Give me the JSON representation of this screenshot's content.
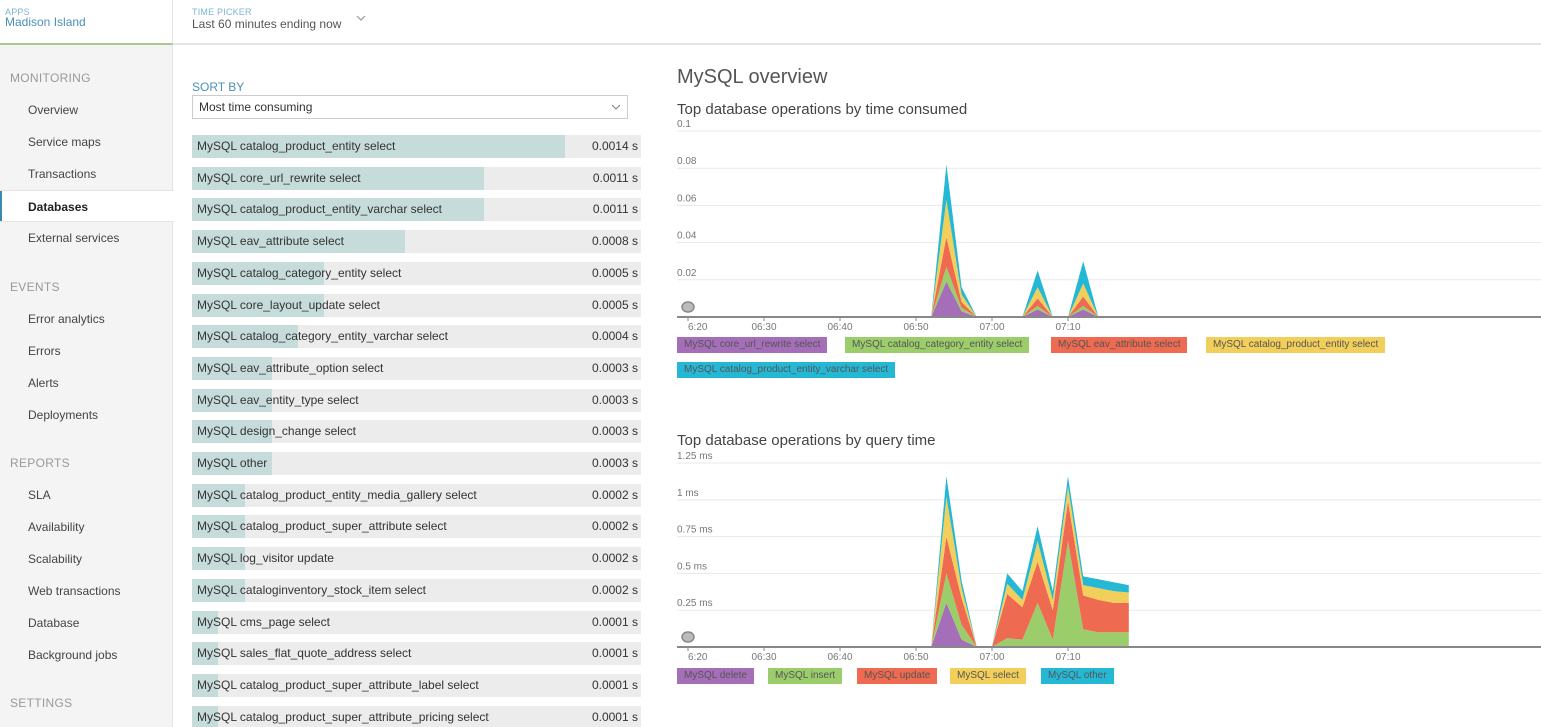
{
  "header": {
    "apps_label": "APPS",
    "app_name": "Madison Island",
    "time_picker_label": "TIME PICKER",
    "time_picker_value": "Last 60 minutes ending now"
  },
  "sidebar": {
    "sections": [
      {
        "title": "MONITORING",
        "items": [
          "Overview",
          "Service maps",
          "Transactions",
          "Databases",
          "External services"
        ]
      },
      {
        "title": "EVENTS",
        "items": [
          "Error analytics",
          "Errors",
          "Alerts",
          "Deployments"
        ]
      },
      {
        "title": "REPORTS",
        "items": [
          "SLA",
          "Availability",
          "Scalability",
          "Web transactions",
          "Database",
          "Background jobs"
        ]
      },
      {
        "title": "SETTINGS",
        "items": []
      }
    ],
    "active_item": "Databases"
  },
  "sort": {
    "label": "SORT BY",
    "selected": "Most time consuming"
  },
  "operations": [
    {
      "name": "MySQL catalog_product_entity select",
      "value": "0.0014 s",
      "fraction": 0.83
    },
    {
      "name": "MySQL core_url_rewrite select",
      "value": "0.0011 s",
      "fraction": 0.65
    },
    {
      "name": "MySQL catalog_product_entity_varchar select",
      "value": "0.0011 s",
      "fraction": 0.65
    },
    {
      "name": "MySQL eav_attribute select",
      "value": "0.0008 s",
      "fraction": 0.475
    },
    {
      "name": "MySQL catalog_category_entity select",
      "value": "0.0005 s",
      "fraction": 0.295
    },
    {
      "name": "MySQL core_layout_update select",
      "value": "0.0005 s",
      "fraction": 0.295
    },
    {
      "name": "MySQL catalog_category_entity_varchar select",
      "value": "0.0004 s",
      "fraction": 0.235
    },
    {
      "name": "MySQL eav_attribute_option select",
      "value": "0.0003 s",
      "fraction": 0.178
    },
    {
      "name": "MySQL eav_entity_type select",
      "value": "0.0003 s",
      "fraction": 0.178
    },
    {
      "name": "MySQL design_change select",
      "value": "0.0003 s",
      "fraction": 0.178
    },
    {
      "name": "MySQL other",
      "value": "0.0003 s",
      "fraction": 0.178
    },
    {
      "name": "MySQL catalog_product_entity_media_gallery select",
      "value": "0.0002 s",
      "fraction": 0.118
    },
    {
      "name": "MySQL catalog_product_super_attribute select",
      "value": "0.0002 s",
      "fraction": 0.118
    },
    {
      "name": "MySQL log_visitor update",
      "value": "0.0002 s",
      "fraction": 0.118
    },
    {
      "name": "MySQL cataloginventory_stock_item select",
      "value": "0.0002 s",
      "fraction": 0.118
    },
    {
      "name": "MySQL cms_page select",
      "value": "0.0001 s",
      "fraction": 0.059
    },
    {
      "name": "MySQL sales_flat_quote_address select",
      "value": "0.0001 s",
      "fraction": 0.059
    },
    {
      "name": "MySQL catalog_product_super_attribute_label select",
      "value": "0.0001 s",
      "fraction": 0.059
    },
    {
      "name": "MySQL catalog_product_super_attribute_pricing select",
      "value": "0.0001 s",
      "fraction": 0.059
    }
  ],
  "page_title": "MySQL overview",
  "chart_data": [
    {
      "type": "area",
      "title": "Top database operations by time consumed",
      "stacked": true,
      "x": [
        "6:20",
        "6:22",
        "6:24",
        "6:26",
        "6:28",
        "6:30",
        "6:32",
        "6:34",
        "6:36",
        "6:38",
        "6:40",
        "6:42",
        "6:44",
        "6:46",
        "6:48",
        "6:50",
        "6:52",
        "6:54",
        "6:56",
        "6:58",
        "7:00",
        "7:02",
        "7:04",
        "7:06",
        "7:08",
        "7:10",
        "7:12",
        "7:14",
        "7:16"
      ],
      "x_tick_labels": [
        "6:20",
        "06:30",
        "06:40",
        "06:50",
        "07:00",
        "07:10"
      ],
      "y_tick_labels": [
        "0.1",
        "0.08",
        "0.06",
        "0.04",
        "0.02"
      ],
      "ylim": [
        0,
        0.1
      ],
      "series": [
        {
          "name": "MySQL core_url_rewrite select",
          "color": "#a56eb8",
          "values": [
            0,
            0,
            0,
            0,
            0,
            0,
            0,
            0,
            0,
            0,
            0,
            0,
            0,
            0,
            0,
            0,
            0,
            0.019,
            0.003,
            0,
            0,
            0,
            0,
            0.004,
            0,
            0,
            0.004,
            0,
            0
          ]
        },
        {
          "name": "MySQL catalog_category_entity select",
          "color": "#9ccd6b",
          "values": [
            0,
            0,
            0,
            0,
            0,
            0,
            0,
            0,
            0,
            0,
            0,
            0,
            0,
            0,
            0,
            0,
            0,
            0.008,
            0.002,
            0,
            0,
            0,
            0,
            0.002,
            0,
            0,
            0.002,
            0,
            0
          ]
        },
        {
          "name": "MySQL eav_attribute select",
          "color": "#ee6a50",
          "values": [
            0,
            0,
            0,
            0,
            0,
            0,
            0,
            0,
            0,
            0,
            0,
            0,
            0,
            0,
            0,
            0,
            0,
            0.016,
            0.003,
            0,
            0,
            0,
            0,
            0.004,
            0,
            0,
            0.005,
            0,
            0
          ]
        },
        {
          "name": "MySQL catalog_product_entity select",
          "color": "#f2cf5b",
          "values": [
            0,
            0,
            0,
            0,
            0,
            0,
            0,
            0,
            0,
            0,
            0,
            0,
            0,
            0,
            0,
            0,
            0,
            0.02,
            0.004,
            0,
            0,
            0,
            0,
            0.006,
            0,
            0,
            0.007,
            0,
            0
          ]
        },
        {
          "name": "MySQL catalog_product_entity_varchar select",
          "color": "#25b8d5",
          "values": [
            0,
            0,
            0,
            0,
            0,
            0,
            0,
            0,
            0,
            0,
            0,
            0,
            0,
            0,
            0,
            0,
            0,
            0.019,
            0.004,
            0,
            0,
            0,
            0,
            0.009,
            0,
            0,
            0.012,
            0,
            0
          ]
        }
      ]
    },
    {
      "type": "area",
      "title": "Top database operations by query time",
      "stacked": true,
      "x": [
        "6:20",
        "6:22",
        "6:24",
        "6:26",
        "6:28",
        "6:30",
        "6:32",
        "6:34",
        "6:36",
        "6:38",
        "6:40",
        "6:42",
        "6:44",
        "6:46",
        "6:48",
        "6:50",
        "6:52",
        "6:54",
        "6:56",
        "6:58",
        "7:00",
        "7:02",
        "7:04",
        "7:06",
        "7:08",
        "7:10",
        "7:12",
        "7:14",
        "7:16",
        "7:18"
      ],
      "x_tick_labels": [
        "6:20",
        "06:30",
        "06:40",
        "06:50",
        "07:00",
        "07:10"
      ],
      "y_tick_labels": [
        "1.25 ms",
        "1 ms",
        "0.75 ms",
        "0.5 ms",
        "0.25 ms"
      ],
      "ylim": [
        0,
        1.25
      ],
      "series": [
        {
          "name": "MySQL delete",
          "color": "#a56eb8",
          "values": [
            0,
            0,
            0,
            0,
            0,
            0,
            0,
            0,
            0,
            0,
            0,
            0,
            0,
            0,
            0,
            0,
            0,
            0.3,
            0.05,
            0,
            0,
            0,
            0,
            0,
            0,
            0,
            0,
            0,
            0,
            0
          ]
        },
        {
          "name": "MySQL insert",
          "color": "#9ccd6b",
          "values": [
            0,
            0,
            0,
            0,
            0,
            0,
            0,
            0,
            0,
            0,
            0,
            0,
            0,
            0,
            0,
            0,
            0,
            0.2,
            0.1,
            0,
            0,
            0.06,
            0.05,
            0.3,
            0.05,
            0.72,
            0.12,
            0.1,
            0.1,
            0.1
          ]
        },
        {
          "name": "MySQL update",
          "color": "#ee6a50",
          "values": [
            0,
            0,
            0,
            0,
            0,
            0,
            0,
            0,
            0,
            0,
            0,
            0,
            0,
            0,
            0,
            0,
            0,
            0.25,
            0.18,
            0,
            0,
            0.3,
            0.22,
            0.28,
            0.2,
            0.27,
            0.23,
            0.22,
            0.2,
            0.2
          ]
        },
        {
          "name": "MySQL select",
          "color": "#f2cf5b",
          "values": [
            0,
            0,
            0,
            0,
            0,
            0,
            0,
            0,
            0,
            0,
            0,
            0,
            0,
            0,
            0,
            0,
            0,
            0.27,
            0.07,
            0,
            0,
            0.07,
            0.05,
            0.14,
            0.07,
            0.1,
            0.07,
            0.08,
            0.08,
            0.07
          ]
        },
        {
          "name": "MySQL other",
          "color": "#25b8d5",
          "values": [
            0,
            0,
            0,
            0,
            0,
            0,
            0,
            0,
            0,
            0,
            0,
            0,
            0,
            0,
            0,
            0,
            0,
            0.14,
            0.05,
            0,
            0,
            0.07,
            0.06,
            0.1,
            0.06,
            0.07,
            0.06,
            0.06,
            0.06,
            0.05
          ]
        }
      ]
    }
  ]
}
